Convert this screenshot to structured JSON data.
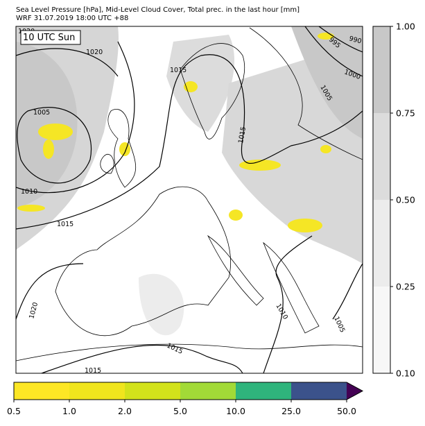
{
  "header": {
    "title": "Sea Level Pressure [hPa], Mid-Level Cloud Cover, Total prec. in the last hour [mm]",
    "subtitle": "WRF 31.07.2019 18:00 UTC +88"
  },
  "map": {
    "time_label": "10 UTC Sun",
    "isobar_labels": [
      "1020",
      "1020",
      "1005",
      "1015",
      "1015",
      "1010",
      "1015",
      "1020",
      "1015",
      "1015",
      "1010",
      "1005",
      "990",
      "995",
      "1000",
      "1005"
    ]
  },
  "cloud_colorbar": {
    "ticks": [
      "1.00",
      "0.75",
      "0.50",
      "0.25",
      "0.10"
    ],
    "colors": [
      "#c8c8c8",
      "#dcdcdc",
      "#ececec",
      "#f7f7f7"
    ]
  },
  "precip_colorbar": {
    "ticks": [
      "0.5",
      "1.0",
      "2.0",
      "5.0",
      "10.0",
      "25.0",
      "50.0"
    ],
    "colors": [
      "#fde725",
      "#f0e51d",
      "#d2e21b",
      "#a2da37",
      "#2fb47c",
      "#3b528b"
    ],
    "extend_color": "#440154"
  }
}
